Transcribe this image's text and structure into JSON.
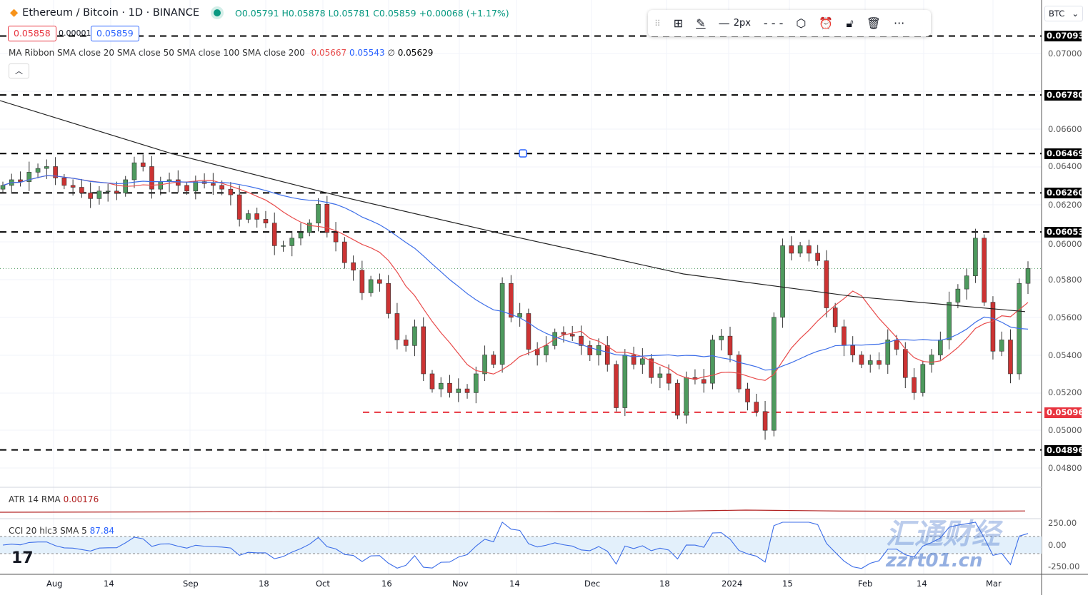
{
  "header": {
    "symbol": "Ethereum / Bitcoin · 1D · BINANCE",
    "ohlc": "O0.05791 H0.05878 L0.05781 C0.05859 +0.00068 (+1.17%)",
    "bid": "0.05858",
    "spread": "0.00001",
    "ask": "0.05859"
  },
  "ma_ribbon": {
    "label": "MA Ribbon SMA close 20 SMA close 50 SMA close 100 SMA close 200",
    "v20": "0.05667",
    "v50": "0.05543",
    "v100": "∅",
    "v200": "0.05629"
  },
  "toolbar": {
    "width_label": "2px",
    "icons": [
      "drag-handle-icon",
      "template-icon",
      "pencil-icon",
      "line-width-icon",
      "line-style-icon",
      "settings-icon",
      "alert-icon",
      "unlock-icon",
      "trash-icon",
      "more-icon"
    ]
  },
  "currency": "BTC",
  "indicators": {
    "atr": {
      "label": "ATR 14 RMA",
      "value": "0.00176"
    },
    "cci": {
      "label": "CCI 20 hlc3 SMA 5",
      "value": "87.84"
    }
  },
  "watermark": {
    "cn": "汇通财经",
    "url": "zzrt01.cn"
  },
  "colors": {
    "up": "#4e9a5e",
    "down": "#cc3333",
    "sma20": "#e84b4b",
    "sma50": "#3d6ee8",
    "sma200": "#222222",
    "level": "#000000",
    "support": "#e8343f",
    "cci": "#3d6ee8",
    "atr": "#b22222"
  },
  "chart_data": {
    "type": "candlestick",
    "ylim": [
      0.0475,
      0.0715
    ],
    "y_ticks": [
      "0.07000",
      "0.06600",
      "0.06400",
      "0.06200",
      "0.06000",
      "0.05800",
      "0.05600",
      "0.05400",
      "0.05200",
      "0.05000",
      "0.04800"
    ],
    "x_ticks": [
      "Aug",
      "14",
      "Sep",
      "18",
      "Oct",
      "16",
      "Nov",
      "14",
      "Dec",
      "18",
      "2024",
      "15",
      "Feb",
      "14",
      "Mar"
    ],
    "levels": [
      {
        "value": "0.07093",
        "color": "black"
      },
      {
        "value": "0.06780",
        "color": "black"
      },
      {
        "value": "0.06469",
        "color": "black"
      },
      {
        "value": "0.06260",
        "color": "black"
      },
      {
        "value": "0.06053",
        "color": "black"
      },
      {
        "value": "0.05096",
        "color": "red"
      },
      {
        "value": "0.04896",
        "color": "black"
      }
    ],
    "closes": [
      0.063,
      0.0633,
      0.0632,
      0.0637,
      0.0639,
      0.064,
      0.0634,
      0.063,
      0.0629,
      0.0626,
      0.0623,
      0.0627,
      0.0627,
      0.0626,
      0.0633,
      0.0642,
      0.064,
      0.0628,
      0.0632,
      0.0633,
      0.063,
      0.0627,
      0.0632,
      0.0631,
      0.063,
      0.0628,
      0.0625,
      0.0612,
      0.0615,
      0.0612,
      0.061,
      0.0598,
      0.0598,
      0.0602,
      0.0605,
      0.061,
      0.062,
      0.0605,
      0.06,
      0.0589,
      0.0585,
      0.0573,
      0.058,
      0.0578,
      0.0562,
      0.0548,
      0.0545,
      0.0555,
      0.053,
      0.0522,
      0.0525,
      0.052,
      0.0522,
      0.052,
      0.053,
      0.054,
      0.0535,
      0.0578,
      0.056,
      0.0562,
      0.0543,
      0.054,
      0.0545,
      0.0552,
      0.0551,
      0.055,
      0.0545,
      0.054,
      0.0545,
      0.0535,
      0.0512,
      0.054,
      0.0535,
      0.0538,
      0.0528,
      0.053,
      0.0525,
      0.0508,
      0.0528,
      0.0527,
      0.0525,
      0.0548,
      0.055,
      0.054,
      0.0522,
      0.0515,
      0.051,
      0.05,
      0.056,
      0.0598,
      0.0594,
      0.0598,
      0.0594,
      0.059,
      0.0565,
      0.0555,
      0.0545,
      0.054,
      0.0535,
      0.0537,
      0.0535,
      0.0548,
      0.0543,
      0.0528,
      0.052,
      0.0535,
      0.054,
      0.0548,
      0.0568,
      0.0575,
      0.0582,
      0.0602,
      0.0568,
      0.0542,
      0.0548,
      0.053,
      0.0578,
      0.05859
    ],
    "sma200": [
      0.0675,
      0.0647,
      0.0624,
      0.0603,
      0.0583,
      0.0571,
      0.0563
    ],
    "atr_scale": [
      0.0014,
      0.00145,
      0.0015,
      0.0016,
      0.00165,
      0.0016,
      0.00155,
      0.0016,
      0.002,
      0.00175,
      0.00165,
      0.00176
    ]
  }
}
